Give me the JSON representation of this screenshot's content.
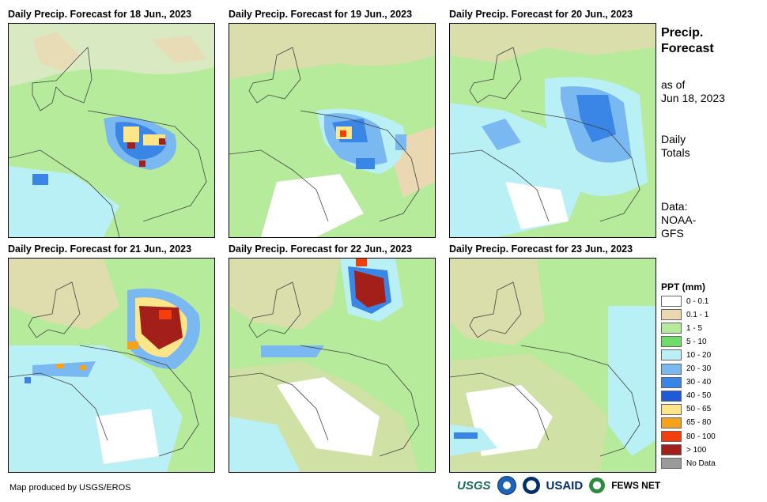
{
  "panels": [
    {
      "title": "Daily Precip. Forecast for 18 Jun., 2023"
    },
    {
      "title": "Daily Precip. Forecast for 19 Jun., 2023"
    },
    {
      "title": "Daily Precip. Forecast for 20 Jun., 2023"
    },
    {
      "title": "Daily Precip. Forecast for 21 Jun., 2023"
    },
    {
      "title": "Daily Precip. Forecast for 22 Jun., 2023"
    },
    {
      "title": "Daily Precip. Forecast for 23 Jun., 2023"
    }
  ],
  "sidebar": {
    "title_line1": "Precip.",
    "title_line2": "Forecast",
    "asof_line1": "as of",
    "asof_line2": "Jun 18, 2023",
    "daily_line1": "Daily",
    "daily_line2": "Totals",
    "data_line1": "Data:",
    "data_line2": "NOAA-",
    "data_line3": "GFS"
  },
  "legend": {
    "title": "PPT (mm)",
    "items": [
      {
        "label": "0 - 0.1",
        "color": "#ffffff"
      },
      {
        "label": "0.1 - 1",
        "color": "#ead8b2"
      },
      {
        "label": "1 - 5",
        "color": "#b6eb9b"
      },
      {
        "label": "5 - 10",
        "color": "#6fdc6a"
      },
      {
        "label": "10 - 20",
        "color": "#b8f0f5"
      },
      {
        "label": "20 - 30",
        "color": "#7ab8f2"
      },
      {
        "label": "30 - 40",
        "color": "#3a86e6"
      },
      {
        "label": "40 - 50",
        "color": "#1f5bd8"
      },
      {
        "label": "50 - 65",
        "color": "#fde68a"
      },
      {
        "label": "65 - 80",
        "color": "#f7a21b"
      },
      {
        "label": "80 - 100",
        "color": "#f23d0c"
      },
      {
        "label": "> 100",
        "color": "#a31f1a"
      },
      {
        "label": "No Data",
        "color": "#9a9a9a"
      }
    ]
  },
  "footer": {
    "credit": "Map produced by USGS/EROS",
    "logo_usgs": "USGS",
    "logo_usaid": "USAID",
    "logo_fews": "FEWS NET"
  }
}
